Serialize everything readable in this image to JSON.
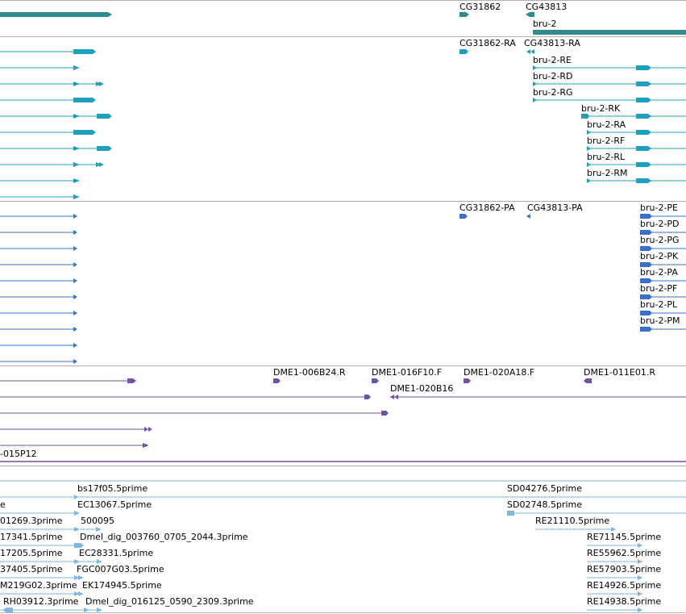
{
  "colors": {
    "gene": "#2e8b8b",
    "transcript": "#1ea0bd",
    "protein": "#3a6fcc",
    "clone": "#7052a8",
    "est": "#7fb6dc",
    "separator": "#9a9a9a"
  },
  "tracks": {
    "genes": {
      "labels": [
        "CG31862",
        "CG43813",
        "bru-2"
      ]
    },
    "transcripts": {
      "labels": [
        "CG31862-RA",
        "CG43813-RA",
        "bru-2-RE",
        "bru-2-RD",
        "bru-2-RG",
        "bru-2-RK",
        "bru-2-RA",
        "bru-2-RF",
        "bru-2-RL",
        "bru-2-RM"
      ]
    },
    "proteins": {
      "labels": [
        "CG31862-PA",
        "CG43813-PA",
        "bru-2-PE",
        "bru-2-PD",
        "bru-2-PG",
        "bru-2-PK",
        "bru-2-PA",
        "bru-2-PF",
        "bru-2-PL",
        "bru-2-PM"
      ]
    },
    "clones": {
      "labels": [
        "DME1-006B24.R",
        "DME1-016F10.F",
        "DME1-020A18.F",
        "DME1-011E01.R",
        "DME1-020B16",
        "-015P12"
      ]
    },
    "ests": {
      "labels": [
        "bs17f05.5prime",
        "SD04276.5prime",
        "EC13067.5prime",
        "SD02748.5prime",
        "01269.3prime",
        "500095",
        "RE21110.5prime",
        "17341.5prime",
        "Dmel_dig_003760_0705_2044.3prime",
        "RE71145.5prime",
        "17205.5prime",
        "EC28331.5prime",
        "RE55962.5prime",
        "37405.5prime",
        "FGC007G03.5prime",
        "RE57903.5prime",
        "M219G02.3prime",
        "EK174945.5prime",
        "RE14926.5prime",
        "RH03912.3prime",
        "Dmel_dig_016125_0590_2309.3prime",
        "RE14938.5prime",
        "e"
      ]
    }
  }
}
